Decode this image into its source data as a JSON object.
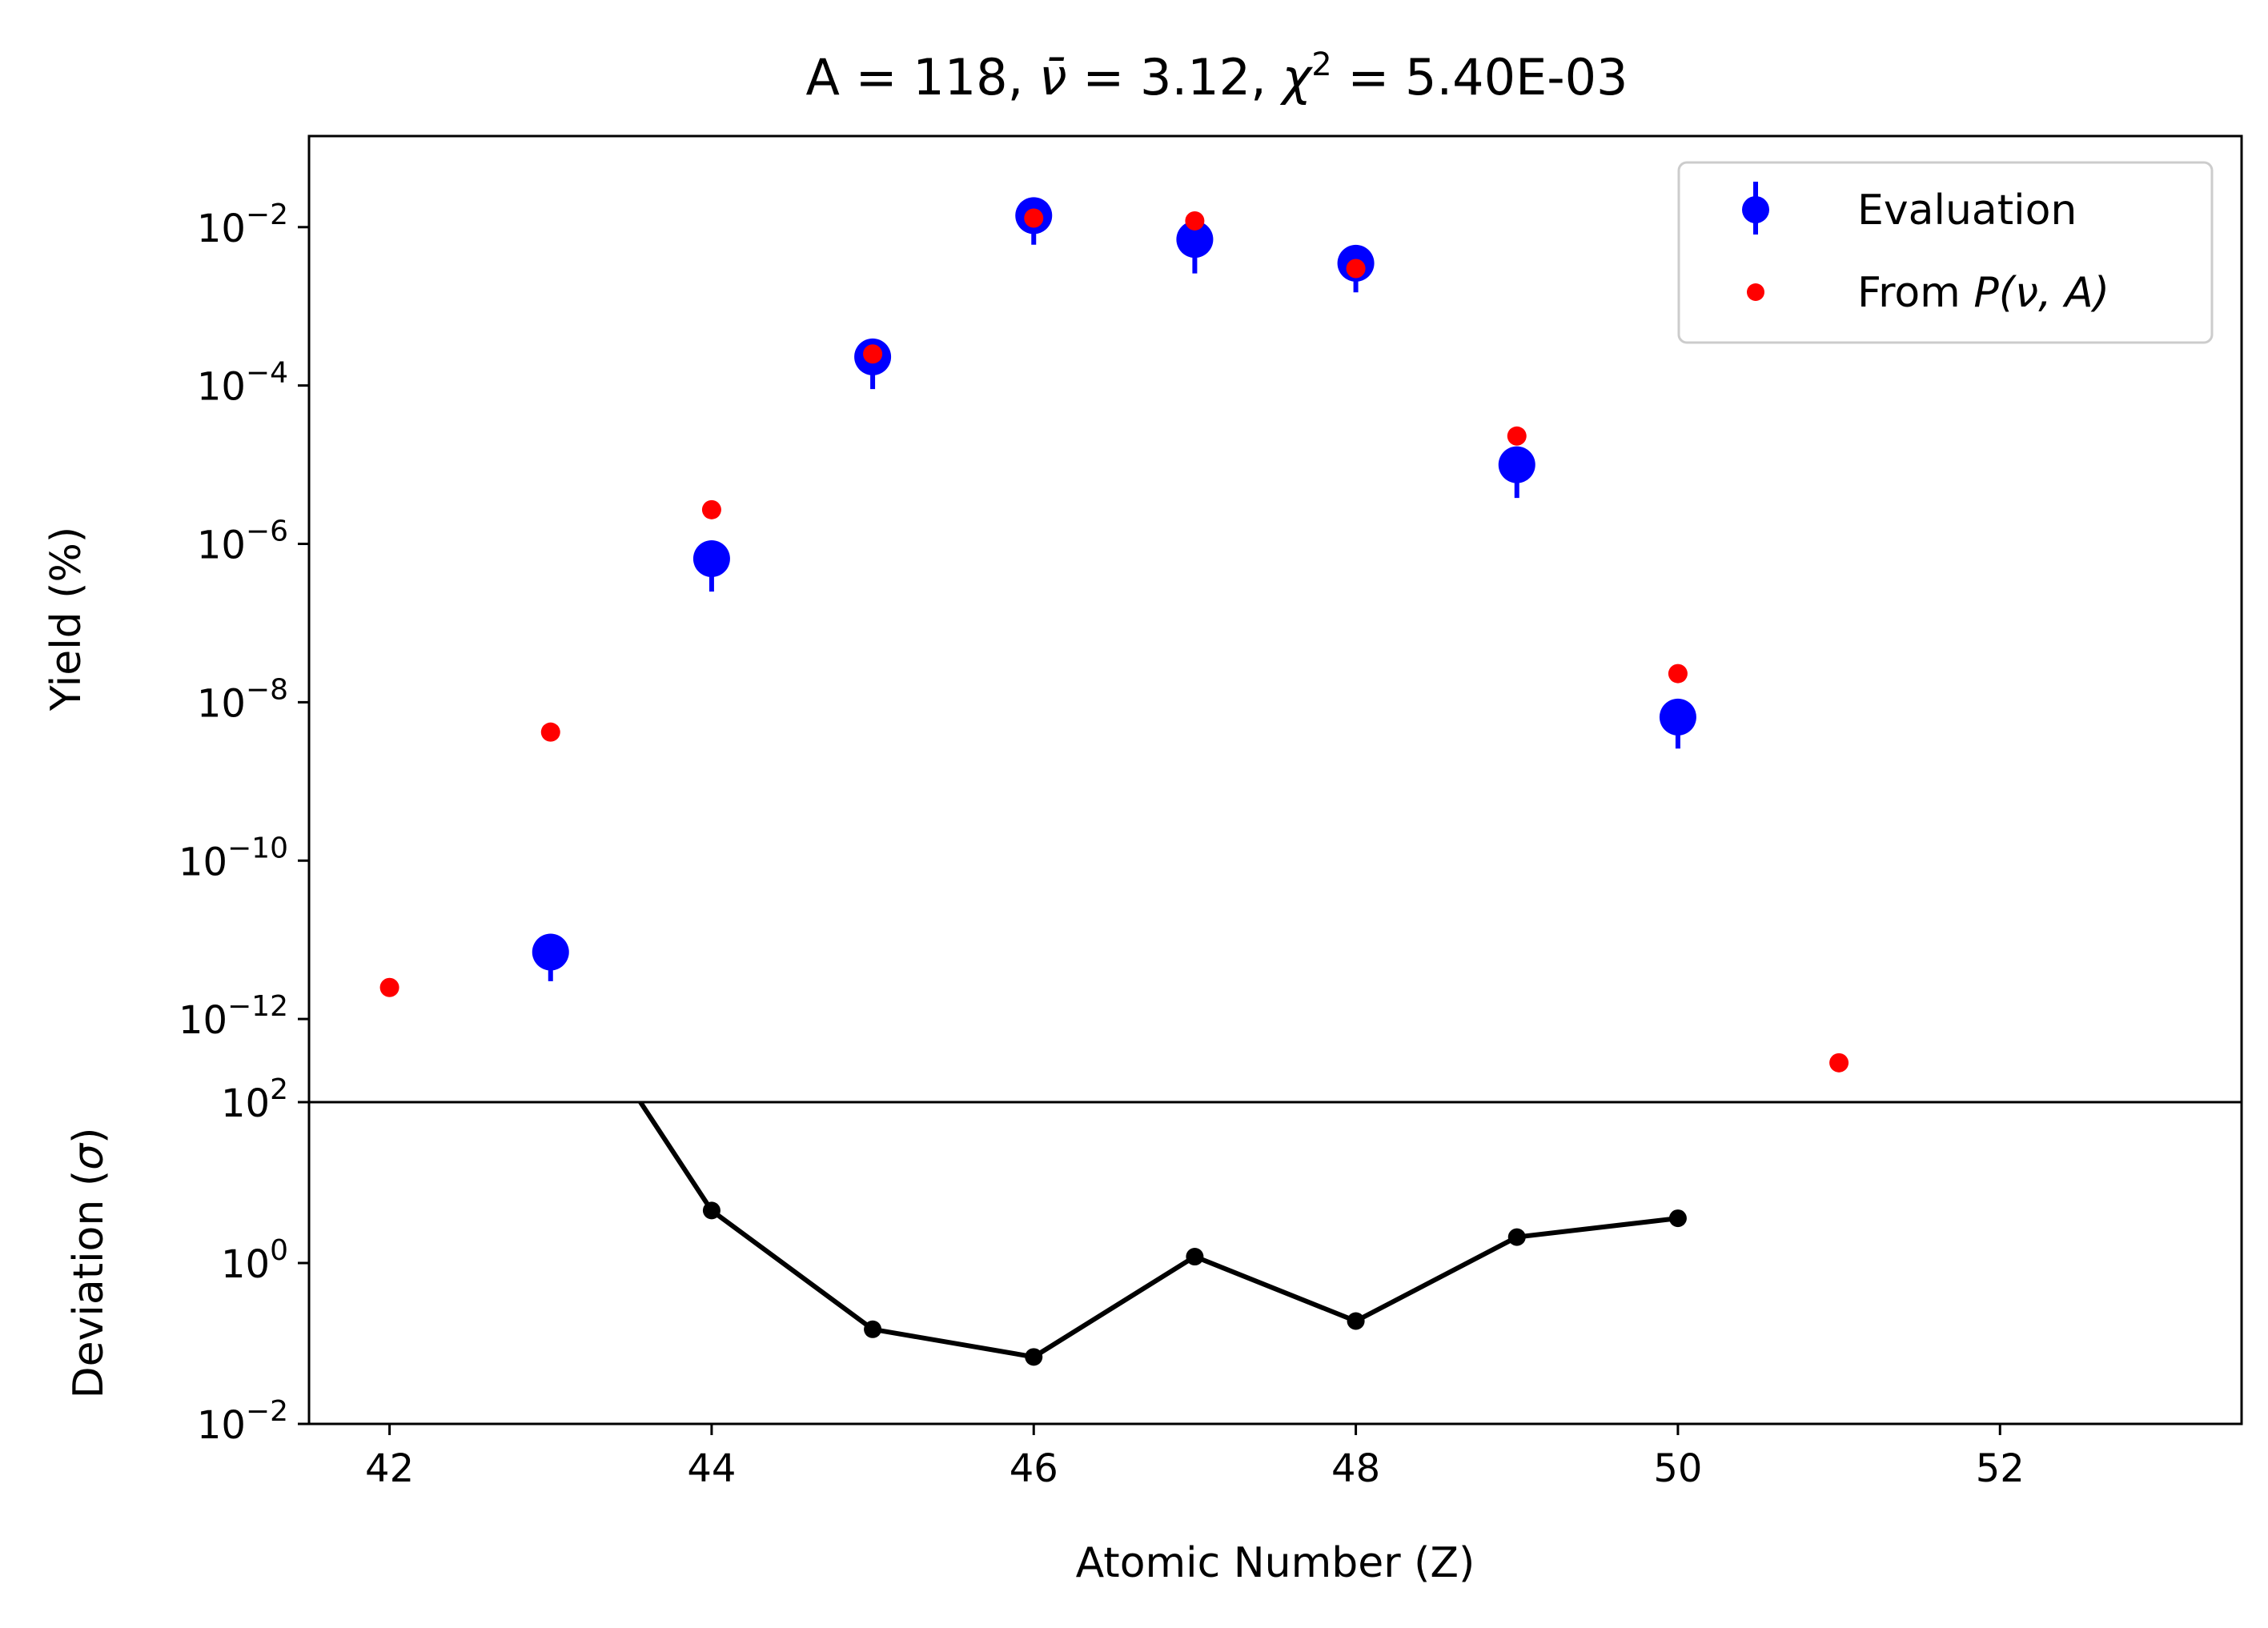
{
  "chart_data": [
    {
      "type": "scatter",
      "title": {
        "prefix": "A = 118, ",
        "nu_symbol": "ν̄",
        "mid": " = 3.12, ",
        "chi_symbol": "χ",
        "chi_exp": "2",
        "suffix": " = 5.40E-03"
      },
      "xlabel": "",
      "ylabel": "Yield (%)",
      "yscale": "log",
      "xlim": [
        41.5,
        53.5
      ],
      "ylim_exp": [
        -13.05,
        -0.85
      ],
      "yticks_exp": [
        -12,
        -10,
        -8,
        -6,
        -4,
        -2
      ],
      "ytick_labels": [
        {
          "base": "10",
          "exp": "−12"
        },
        {
          "base": "10",
          "exp": "−10"
        },
        {
          "base": "10",
          "exp": "−8"
        },
        {
          "base": "10",
          "exp": "−6"
        },
        {
          "base": "10",
          "exp": "−4"
        },
        {
          "base": "10",
          "exp": "−2"
        }
      ],
      "legend": {
        "placement": "top-right",
        "entries": [
          {
            "label": "Evaluation",
            "color": "#0000ff"
          },
          {
            "label_prefix": "From ",
            "label_math": "P(ν, A)",
            "color": "#ff0000"
          }
        ]
      },
      "series": [
        {
          "name": "Evaluation",
          "color": "#0000ff",
          "x": [
            43,
            44,
            45,
            46,
            47,
            48,
            49,
            50
          ],
          "y": [
            7e-12,
            6.5e-07,
            0.00023,
            0.014,
            0.007,
            0.0035,
            1e-05,
            6.5e-09
          ],
          "yerr_low": [
            3e-12,
            2.5e-07,
            9e-05,
            0.006,
            0.0026,
            0.0015,
            3.8e-06,
            2.6e-09
          ]
        },
        {
          "name": "From P(ν, A)",
          "color": "#ff0000",
          "x": [
            42,
            43,
            44,
            45,
            46,
            47,
            48,
            49,
            50,
            51
          ],
          "y": [
            2.5e-12,
            4.2e-09,
            2.7e-06,
            0.00025,
            0.013,
            0.012,
            0.003,
            2.3e-05,
            2.3e-08,
            2.8e-13
          ]
        }
      ]
    },
    {
      "type": "line",
      "xlabel": "Atomic Number (Z)",
      "ylabel": {
        "text": "Deviation (",
        "sym": "σ",
        "close": ")"
      },
      "yscale": "log",
      "xlim": [
        41.5,
        53.5
      ],
      "ylim_exp": [
        -2,
        2
      ],
      "yticks_exp": [
        -2,
        0,
        2
      ],
      "ytick_labels": [
        {
          "base": "10",
          "exp": "−2"
        },
        {
          "base": "10",
          "exp": "0"
        },
        {
          "base": "10",
          "exp": "2"
        }
      ],
      "xticks": [
        42,
        44,
        46,
        48,
        50,
        52
      ],
      "xtick_labels": [
        "42",
        "44",
        "46",
        "48",
        "50",
        "52"
      ],
      "color": "#000000",
      "series": [
        {
          "x": [
            43,
            44,
            45,
            46,
            47,
            48,
            49,
            50
          ],
          "y": [
            5000,
            4.5,
            0.15,
            0.068,
            1.2,
            0.19,
            2.1,
            3.6
          ]
        }
      ]
    }
  ]
}
